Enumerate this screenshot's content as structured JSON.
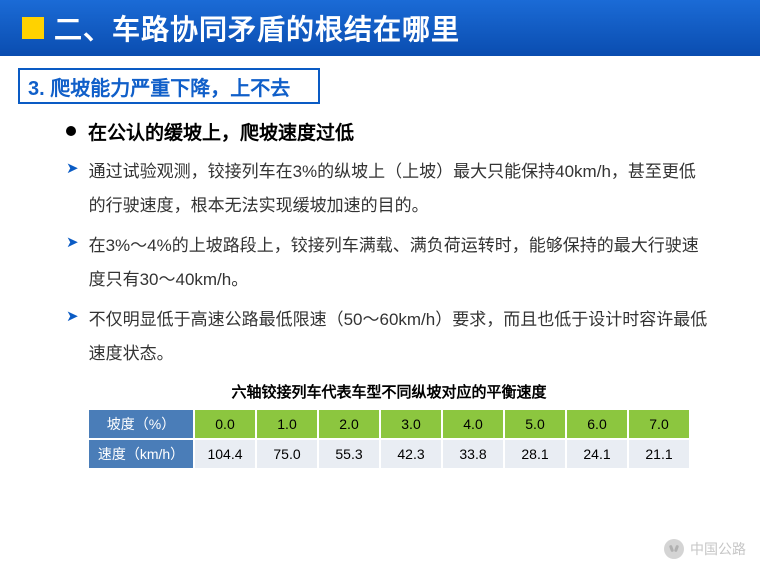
{
  "header": {
    "title": "二、车路协同矛盾的根结在哪里"
  },
  "subhead": {
    "text": "3. 爬坡能力严重下降，上不去"
  },
  "lead": "在公认的缓坡上，爬坡速度过低",
  "bullets": [
    "通过试验观测，铰接列车在3%的纵坡上（上坡）最大只能保持40km/h，甚至更低的行驶速度，根本无法实现缓坡加速的目的。",
    "在3%～4%的上坡路段上，铰接列车满载、满负荷运转时，能够保持的最大行驶速度只有30～40km/h。",
    "不仅明显低于高速公路最低限速（50～60km/h）要求，而且也低于设计时容许最低速度状态。"
  ],
  "table": {
    "title": "六轴铰接列车代表车型不同纵坡对应的平衡速度",
    "row_headers": [
      "坡度（%）",
      "速度（km/h）"
    ],
    "slope": [
      "0.0",
      "1.0",
      "2.0",
      "3.0",
      "4.0",
      "5.0",
      "6.0",
      "7.0"
    ],
    "speed": [
      "104.4",
      "75.0",
      "55.3",
      "42.3",
      "33.8",
      "28.1",
      "24.1",
      "21.1"
    ],
    "header_bg": "#4a7db8",
    "slope_bg": "#8cc63f",
    "speed_bg": "#e9edf3"
  },
  "watermark": "中国公路"
}
